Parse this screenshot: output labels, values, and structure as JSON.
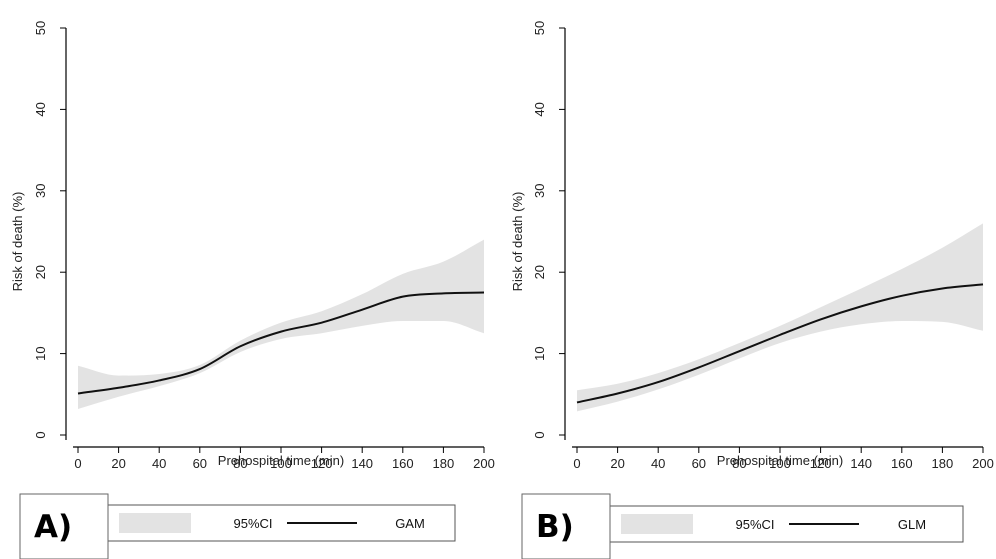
{
  "chart_data": [
    {
      "type": "line",
      "panel_label": "A)",
      "xlabel": "Prehospital time (min)",
      "ylabel": "Risk of death (%)",
      "xlim": [
        0,
        200
      ],
      "ylim": [
        0,
        50
      ],
      "x_ticks": [
        "0",
        "20",
        "40",
        "60",
        "80",
        "100",
        "120",
        "140",
        "160",
        "180",
        "200"
      ],
      "y_ticks": [
        "0",
        "10",
        "20",
        "30",
        "40",
        "50"
      ],
      "grid": false,
      "legend": {
        "placement": "bottom",
        "band_label": "95%CI",
        "line_label": "GAM"
      },
      "band_color": "#e3e3e3",
      "line_color": "#111111",
      "series": [
        {
          "name": "GAM",
          "x": [
            0,
            20,
            40,
            60,
            80,
            100,
            120,
            140,
            160,
            180,
            200
          ],
          "y": [
            5.1,
            5.8,
            6.7,
            8.1,
            10.9,
            12.7,
            13.8,
            15.4,
            17.0,
            17.4,
            17.5
          ],
          "ci_lower": [
            3.2,
            4.7,
            6.0,
            7.6,
            10.2,
            11.8,
            12.5,
            13.4,
            14.0,
            14.0,
            12.5
          ],
          "ci_upper": [
            8.5,
            7.3,
            7.5,
            8.6,
            11.6,
            13.8,
            15.2,
            17.3,
            19.8,
            21.3,
            24.0
          ]
        }
      ]
    },
    {
      "type": "line",
      "panel_label": "B)",
      "xlabel": "Prehospital time (min)",
      "ylabel": "Risk of death (%)",
      "xlim": [
        0,
        200
      ],
      "ylim": [
        0,
        50
      ],
      "x_ticks": [
        "0",
        "20",
        "40",
        "60",
        "80",
        "100",
        "120",
        "140",
        "160",
        "180",
        "200"
      ],
      "y_ticks": [
        "0",
        "10",
        "20",
        "30",
        "40",
        "50"
      ],
      "grid": false,
      "legend": {
        "placement": "bottom",
        "band_label": "95%CI",
        "line_label": "GLM"
      },
      "band_color": "#e3e3e3",
      "line_color": "#111111",
      "series": [
        {
          "name": "GLM",
          "x": [
            0,
            20,
            40,
            60,
            80,
            100,
            120,
            140,
            160,
            180,
            200
          ],
          "y": [
            4.0,
            5.1,
            6.5,
            8.3,
            10.3,
            12.3,
            14.2,
            15.8,
            17.1,
            18.0,
            18.5
          ],
          "ci_lower": [
            2.9,
            4.1,
            5.6,
            7.4,
            9.4,
            11.3,
            12.7,
            13.6,
            14.0,
            13.9,
            12.8
          ],
          "ci_upper": [
            5.5,
            6.3,
            7.6,
            9.3,
            11.3,
            13.4,
            15.7,
            18.0,
            20.4,
            23.0,
            26.0
          ]
        }
      ]
    }
  ]
}
